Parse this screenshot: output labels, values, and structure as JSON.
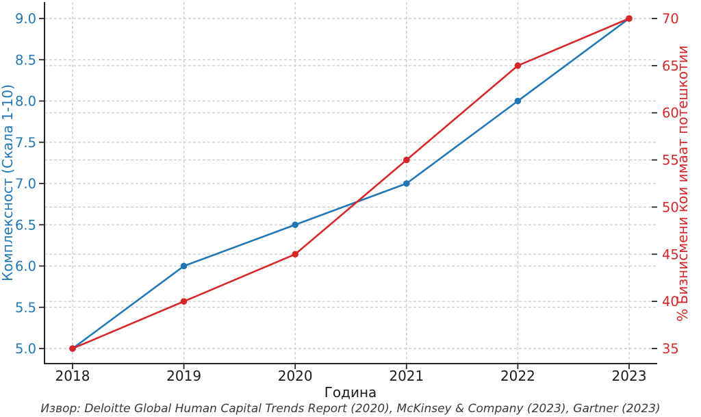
{
  "chart_data": {
    "type": "line",
    "xlabel": "Година",
    "ylabel_left": "Комплексност (Скала 1-10)",
    "ylabel_right": "% Бизнисмени кои имаат потешкотии",
    "caption": "Извор: Deloitte Global Human Capital Trends Report (2020), McKinsey & Company (2023), Gartner (2023)",
    "x_ticks": [
      "2018",
      "2019",
      "2020",
      "2021",
      "2022",
      "2023"
    ],
    "y_ticks_left": [
      "5.0",
      "5.5",
      "6.0",
      "6.5",
      "7.0",
      "7.5",
      "8.0",
      "8.5",
      "9.0"
    ],
    "y_ticks_right": [
      "35",
      "40",
      "45",
      "50",
      "55",
      "60",
      "65",
      "70"
    ],
    "ylim_left": [
      5.0,
      9.0
    ],
    "ylim_right": [
      35,
      70
    ],
    "grid": "dashed",
    "legend": "none",
    "series": [
      {
        "name": "Комплексност (Скала 1-10)",
        "axis": "left",
        "color": "#2077b4",
        "marker": "circle",
        "x": [
          2018,
          2019,
          2020,
          2021,
          2022,
          2023
        ],
        "values": [
          5.0,
          6.0,
          6.5,
          7.0,
          8.0,
          9.0
        ]
      },
      {
        "name": "% Бизнисмени кои имаат потешкотии",
        "axis": "right",
        "color": "#d62728",
        "marker": "circle",
        "x": [
          2018,
          2019,
          2020,
          2021,
          2022,
          2023
        ],
        "values": [
          35,
          40,
          45,
          55,
          65,
          70
        ]
      }
    ]
  },
  "colors": {
    "left_axis": "#2077b4",
    "right_axis": "#d62728",
    "grid": "#cccccc",
    "spine": "#262626",
    "tick_mark": "#262626",
    "tick_text": "#1a1a1a",
    "caption_text": "#3a3a3a",
    "background": "#ffffff"
  }
}
